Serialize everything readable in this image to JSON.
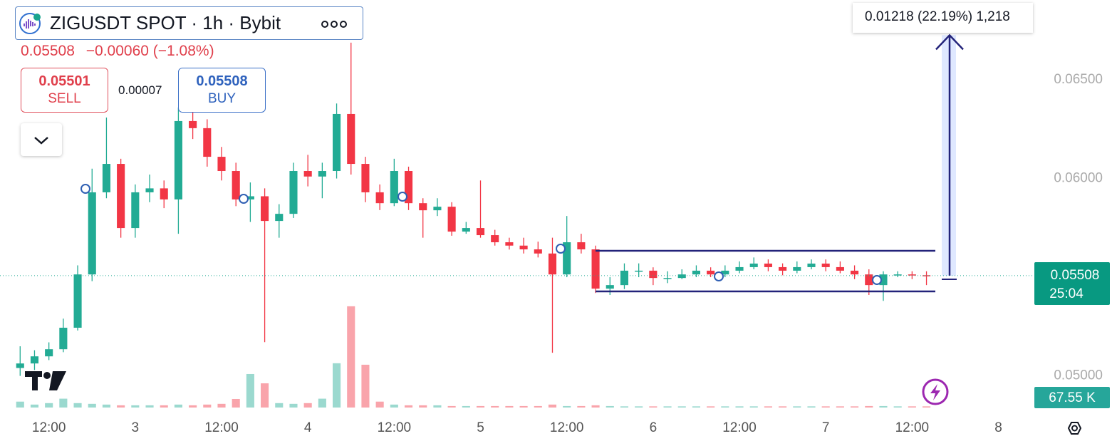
{
  "panel": {
    "symbol": "ZIGUSDT SPOT · 1h · Bybit",
    "last": "0.05508",
    "change": "−0.00060 (−1.08%)",
    "sell_price": "0.05501",
    "sell_label": "SELL",
    "spread": "0.00007",
    "buy_price": "0.05508",
    "buy_label": "BUY"
  },
  "chart_data": {
    "type": "candlestick",
    "x": [
      8,
      10,
      12,
      14,
      16,
      18,
      20,
      22,
      24,
      26,
      28,
      30,
      32,
      34,
      36,
      38,
      40,
      42,
      44,
      46,
      48,
      50,
      52,
      54,
      56,
      58,
      60,
      62,
      64,
      66,
      68,
      70,
      72,
      74,
      76,
      78,
      80,
      82,
      84,
      86,
      88,
      90,
      92,
      94,
      96,
      98,
      100,
      102,
      104,
      106,
      108,
      110,
      112,
      114,
      116,
      118,
      120,
      122,
      124,
      126,
      128,
      130,
      132,
      134
    ],
    "open": [
      0.0504,
      0.05063,
      0.05099,
      0.05135,
      0.05244,
      0.05514,
      0.0593,
      0.06074,
      0.05749,
      0.0593,
      0.0595,
      0.05894,
      0.06291,
      0.06255,
      0.0611,
      0.06038,
      0.05894,
      0.0591,
      0.05785,
      0.05821,
      0.06038,
      0.0601,
      0.06038,
      0.06327,
      0.06074,
      0.0593,
      0.05875,
      0.06038,
      0.05875,
      0.05839,
      0.05857,
      0.05731,
      0.05749,
      0.05713,
      0.05677,
      0.0566,
      0.05641,
      0.0562,
      0.05514,
      0.05677,
      0.05641,
      0.05442,
      0.0546,
      0.05533,
      0.05533,
      0.05496,
      0.05496,
      0.05514,
      0.05533,
      0.05514,
      0.05533,
      0.05551,
      0.05569,
      0.05551,
      0.05533,
      0.05551,
      0.05569,
      0.05551,
      0.05533,
      0.05514,
      0.0546,
      0.05514,
      0.05514,
      0.0551
    ],
    "high": [
      0.0515,
      0.0513,
      0.0517,
      0.0529,
      0.0556,
      0.0605,
      0.06309,
      0.061,
      0.0597,
      0.0602,
      0.0599,
      0.0636,
      0.064,
      0.063,
      0.0616,
      0.0608,
      0.0598,
      0.0595,
      0.0587,
      0.0608,
      0.0612,
      0.0608,
      0.0638,
      0.06688,
      0.0611,
      0.0597,
      0.061,
      0.0606,
      0.059,
      0.059,
      0.0588,
      0.0578,
      0.0599,
      0.0574,
      0.057,
      0.057,
      0.0568,
      0.057,
      0.0581,
      0.0572,
      0.0566,
      0.055,
      0.0557,
      0.0557,
      0.0555,
      0.0553,
      0.0554,
      0.0556,
      0.0555,
      0.0556,
      0.0558,
      0.056,
      0.0559,
      0.0557,
      0.0558,
      0.0559,
      0.0559,
      0.0558,
      0.0556,
      0.0554,
      0.0553,
      0.0553,
      0.0553,
      0.0553
    ],
    "low": [
      0.05,
      0.0503,
      0.0508,
      0.0512,
      0.0523,
      0.0548,
      0.059,
      0.057,
      0.057,
      0.0588,
      0.0585,
      0.0572,
      0.062,
      0.0606,
      0.0599,
      0.0586,
      0.0578,
      0.05171,
      0.057,
      0.058,
      0.0596,
      0.059,
      0.06,
      0.0602,
      0.0588,
      0.0584,
      0.0586,
      0.0584,
      0.057,
      0.0581,
      0.0571,
      0.0572,
      0.057,
      0.0566,
      0.0564,
      0.0562,
      0.056,
      0.05117,
      0.055,
      0.0562,
      0.0542,
      0.0541,
      0.0544,
      0.055,
      0.0546,
      0.0547,
      0.0549,
      0.055,
      0.055,
      0.055,
      0.0552,
      0.0554,
      0.0553,
      0.0551,
      0.0552,
      0.0554,
      0.0553,
      0.0552,
      0.0549,
      0.0541,
      0.0538,
      0.055,
      0.0549,
      0.0546
    ],
    "close": [
      0.05063,
      0.05099,
      0.05135,
      0.05244,
      0.05514,
      0.0593,
      0.06074,
      0.05749,
      0.0593,
      0.0595,
      0.05894,
      0.06291,
      0.06255,
      0.0611,
      0.06038,
      0.05894,
      0.0591,
      0.05785,
      0.05821,
      0.06038,
      0.0601,
      0.06038,
      0.06327,
      0.06074,
      0.0593,
      0.05875,
      0.06038,
      0.05875,
      0.05839,
      0.05857,
      0.05731,
      0.05749,
      0.05713,
      0.05677,
      0.0566,
      0.05641,
      0.0562,
      0.05514,
      0.05677,
      0.05641,
      0.05442,
      0.0546,
      0.05533,
      0.05533,
      0.05496,
      0.05496,
      0.05514,
      0.05533,
      0.05514,
      0.05533,
      0.05551,
      0.05569,
      0.05551,
      0.05533,
      0.05551,
      0.05569,
      0.05551,
      0.05533,
      0.05514,
      0.0546,
      0.05514,
      0.05514,
      0.0551,
      0.05508
    ],
    "volume": [
      40,
      20,
      30,
      60,
      30,
      25,
      20,
      15,
      15,
      15,
      15,
      20,
      15,
      20,
      25,
      58,
      227,
      164,
      30,
      25,
      30,
      60,
      300,
      686,
      290,
      40,
      20,
      15,
      15,
      15,
      10,
      10,
      10,
      10,
      10,
      10,
      10,
      20,
      10,
      10,
      15,
      10,
      8,
      8,
      8,
      8,
      8,
      8,
      8,
      8,
      8,
      8,
      8,
      8,
      8,
      8,
      8,
      8,
      8,
      10,
      10,
      8,
      8,
      8
    ],
    "up_color": "#22ab94",
    "down_color": "#f23645",
    "xlim": [
      5.2,
      148.8
    ],
    "xticks": [
      {
        "value": 12,
        "label": "12:00"
      },
      {
        "value": 24,
        "label": "3"
      },
      {
        "value": 36,
        "label": "12:00"
      },
      {
        "value": 48,
        "label": "4"
      },
      {
        "value": 60,
        "label": "12:00"
      },
      {
        "value": 72,
        "label": "5"
      },
      {
        "value": 84,
        "label": "12:00"
      },
      {
        "value": 96,
        "label": "6"
      },
      {
        "value": 108,
        "label": "12:00"
      },
      {
        "value": 120,
        "label": "7"
      },
      {
        "value": 132,
        "label": "12:00"
      },
      {
        "value": 144,
        "label": "8"
      }
    ],
    "ylim": [
      0.048,
      0.069
    ],
    "yticks": [
      {
        "value": 0.05,
        "label": "0.05000"
      },
      {
        "value": 0.06,
        "label": "0.06000"
      },
      {
        "value": 0.065,
        "label": "0.06500"
      }
    ],
    "volume_lim": [
      0,
      2800
    ],
    "grid": false,
    "price_label": {
      "value": 0.05508,
      "label": "0.05508"
    },
    "countdown": "25:04",
    "volume_label": "67.55 K",
    "channel": [
      0.05634,
      0.05428
    ],
    "measure": {
      "from": 0.05508,
      "to": 0.06726,
      "label": "0.01218 (22.19%) 1,218"
    }
  }
}
